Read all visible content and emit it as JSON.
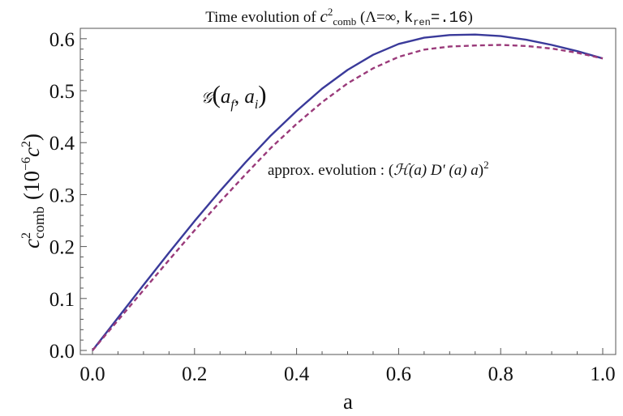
{
  "chart_data": {
    "type": "line",
    "title": {
      "prefix": "Time evolution of ",
      "var": "c",
      "var_sup": "2",
      "var_sub": "comb",
      "paren_open": " (",
      "lambda": "Λ=∞, ",
      "k": "k",
      "k_sub": "ren",
      "k_val": "=.16",
      "paren_close": ")"
    },
    "xlabel": "a",
    "ylabel": {
      "var": "c",
      "sup": "2",
      "sub": "comb",
      "unit_open": "(10",
      "unit_exp": "−6",
      "unit_var": "c",
      "unit_var_sup": "2",
      "unit_close": ")"
    },
    "xlim": [
      0.0,
      1.0
    ],
    "ylim": [
      0.0,
      0.62
    ],
    "xticks": [
      "0.0",
      "0.2",
      "0.4",
      "0.6",
      "0.8",
      "1.0"
    ],
    "yticks": [
      "0.0",
      "0.1",
      "0.2",
      "0.3",
      "0.4",
      "0.5",
      "0.6"
    ],
    "grid": false,
    "x": [
      0.0,
      0.05,
      0.1,
      0.15,
      0.2,
      0.25,
      0.3,
      0.35,
      0.4,
      0.45,
      0.5,
      0.55,
      0.6,
      0.65,
      0.7,
      0.75,
      0.8,
      0.85,
      0.9,
      0.95,
      1.0
    ],
    "series": [
      {
        "color": "#3a3a9a",
        "style": "solid",
        "values": [
          0.0,
          0.063,
          0.126,
          0.188,
          0.249,
          0.307,
          0.362,
          0.414,
          0.461,
          0.504,
          0.54,
          0.569,
          0.59,
          0.602,
          0.607,
          0.608,
          0.605,
          0.598,
          0.588,
          0.576,
          0.562
        ]
      },
      {
        "color": "#9a3a7a",
        "style": "dashed",
        "values": [
          0.0,
          0.058,
          0.116,
          0.174,
          0.231,
          0.286,
          0.339,
          0.39,
          0.436,
          0.478,
          0.514,
          0.543,
          0.565,
          0.579,
          0.585,
          0.587,
          0.588,
          0.586,
          0.581,
          0.573,
          0.562
        ]
      }
    ],
    "annotations": [
      {
        "name": "annotation-g",
        "parts": {
          "G": "𝒢",
          "open": "(",
          "a1": "a",
          "sub1": "f",
          "comma": ", ",
          "a2": "a",
          "sub2": "i",
          "close": ")"
        }
      },
      {
        "name": "annotation-approx",
        "parts": {
          "label": "approx. evolution : ",
          "open": "(",
          "H": "ℋ",
          "Ha": "(a) ",
          "D": "D' ",
          "Da": "(a) ",
          "a": "a",
          "close": ")",
          "sup": "2"
        }
      }
    ]
  }
}
